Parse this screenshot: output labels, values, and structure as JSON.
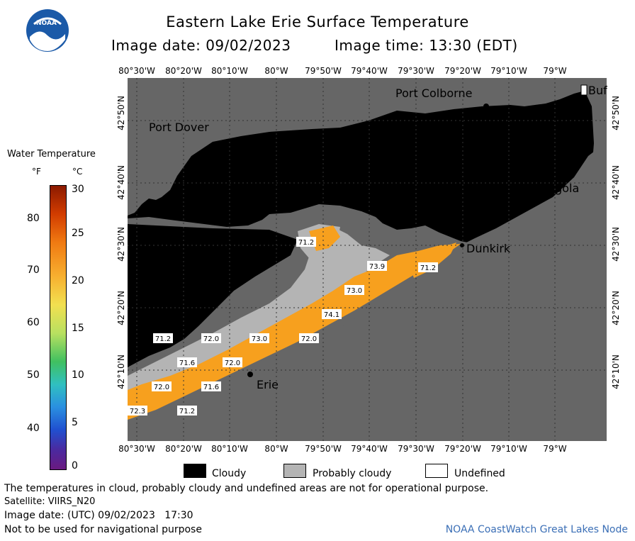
{
  "header": {
    "title": "Eastern Lake Erie Surface Temperature",
    "image_date": "Image date: 09/02/2023",
    "image_time": "Image time: 13:30 (EDT)",
    "logo_text": "NOAA"
  },
  "map": {
    "lon_labels": [
      "80°30'W",
      "80°20'W",
      "80°10'W",
      "80°W",
      "79°50'W",
      "79°40'W",
      "79°30'W",
      "79°20'W",
      "79°10'W",
      "79°W"
    ],
    "lat_labels": [
      "42°50'N",
      "42°40'N",
      "42°30'N",
      "42°20'N",
      "42°10'N"
    ],
    "places": {
      "port_colborne": "Port Colborne",
      "port_dover": "Port Dover",
      "angola": "Angola",
      "dunkirk": "Dunkirk",
      "erie": "Erie",
      "buffalo": "Buf"
    },
    "temp_labels": [
      "71.2",
      "73.9",
      "71.2",
      "73.0",
      "74.1",
      "71.2",
      "72.0",
      "73.0",
      "72.0",
      "71.6",
      "72.0",
      "72.0",
      "71.6",
      "72.3",
      "71.2"
    ],
    "colors": {
      "land": "#666666",
      "cloud": "#000000",
      "probably_cloudy": "#b4b4b4",
      "warm_water": "#f7a01e"
    }
  },
  "colorbar": {
    "title": "Water Temperature",
    "unit_f": "°F",
    "unit_c": "°C",
    "f_ticks": [
      "80",
      "70",
      "60",
      "50",
      "40"
    ],
    "c_ticks": [
      "30",
      "25",
      "20",
      "15",
      "10",
      "5",
      "0"
    ]
  },
  "key": {
    "cloudy": "Cloudy",
    "probably_cloudy": "Probably cloudy",
    "undefined": "Undefined"
  },
  "footer": {
    "note": "The temperatures in cloud, probably cloudy and undefined areas are not for operational purpose.",
    "satellite": "Satellite: VIIRS_N20",
    "utc_date": "Image date: (UTC) 09/02/2023   17:30",
    "nav": "Not to be used for navigational purpose",
    "credit": "NOAA CoastWatch Great Lakes Node"
  }
}
